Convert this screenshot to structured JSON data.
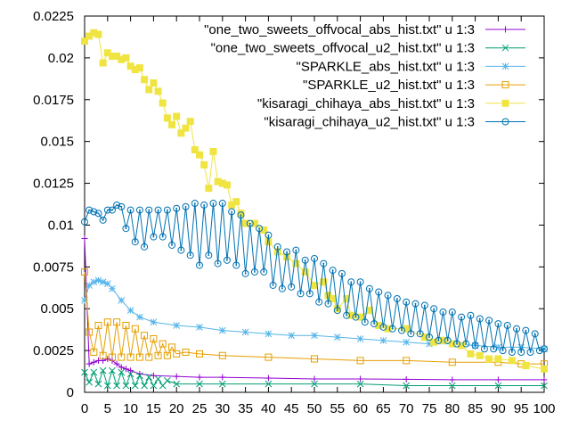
{
  "chart_data": {
    "type": "line",
    "xlim": [
      0,
      100
    ],
    "ylim": [
      0,
      0.0225
    ],
    "xticks": [
      "0",
      "5",
      "10",
      "15",
      "20",
      "25",
      "30",
      "35",
      "40",
      "45",
      "50",
      "55",
      "60",
      "65",
      "70",
      "75",
      "80",
      "85",
      "90",
      "95",
      "100"
    ],
    "yticks": [
      "0",
      "0.0025",
      "0.005",
      "0.0075",
      "0.01",
      "0.0125",
      "0.015",
      "0.0175",
      "0.02",
      "0.0225"
    ],
    "grid": false,
    "legend_position": "top-right",
    "series": [
      {
        "name": "\"one_two_sweets_offvocal_abs_hist.txt\" u 1:3",
        "color": "#9400d3",
        "marker": "plus",
        "x": [
          0,
          1,
          2,
          3,
          4,
          5,
          6,
          7,
          8,
          9,
          10,
          12,
          15,
          20,
          25,
          30,
          40,
          50,
          60,
          70,
          80,
          90,
          100
        ],
        "y": [
          0.0092,
          0.0017,
          0.0018,
          0.0019,
          0.0019,
          0.002,
          0.0019,
          0.0017,
          0.0015,
          0.0014,
          0.0013,
          0.0011,
          0.001,
          0.00095,
          0.0009,
          0.0009,
          0.00085,
          0.0008,
          0.0008,
          0.00078,
          0.00075,
          0.00075,
          0.00075
        ]
      },
      {
        "name": "\"one_two_sweets_offvocal_u2_hist.txt\" u 1:3",
        "color": "#009e73",
        "marker": "x",
        "x": [
          0,
          1,
          2,
          3,
          4,
          5,
          6,
          7,
          8,
          9,
          10,
          11,
          12,
          13,
          14,
          15,
          16,
          17,
          18,
          20,
          25,
          30,
          40,
          50,
          60,
          70,
          80,
          90,
          100
        ],
        "y": [
          0.0012,
          0.0006,
          0.0012,
          0.0005,
          0.0013,
          0.0004,
          0.0013,
          0.0004,
          0.0012,
          0.0004,
          0.0011,
          0.0004,
          0.001,
          0.0004,
          0.0009,
          0.0004,
          0.0008,
          0.0004,
          0.0007,
          0.0005,
          0.0005,
          0.0005,
          0.0005,
          0.0005,
          0.0005,
          0.0004,
          0.0004,
          0.0004,
          0.0004
        ]
      },
      {
        "name": "\"SPARKLE_abs_hist.txt\" u 1:3",
        "color": "#56b4e9",
        "marker": "star",
        "x": [
          0,
          1,
          2,
          3,
          4,
          5,
          6,
          8,
          10,
          12,
          15,
          20,
          25,
          30,
          35,
          40,
          45,
          50,
          55,
          60,
          65,
          70,
          75,
          80,
          85,
          90,
          95,
          100
        ],
        "y": [
          0.0055,
          0.0064,
          0.0066,
          0.0067,
          0.0066,
          0.0065,
          0.0062,
          0.0055,
          0.0049,
          0.0045,
          0.0042,
          0.004,
          0.0039,
          0.0037,
          0.0036,
          0.0035,
          0.0034,
          0.0034,
          0.0033,
          0.0032,
          0.0031,
          0.003,
          0.0029,
          0.0029,
          0.0028,
          0.0027,
          0.0027,
          0.0026
        ]
      },
      {
        "name": "\"SPARKLE_u2_hist.txt\" u 1:3",
        "color": "#e69f00",
        "marker": "square-open",
        "x": [
          0,
          1,
          2,
          3,
          4,
          5,
          6,
          7,
          8,
          9,
          10,
          11,
          12,
          13,
          14,
          15,
          16,
          17,
          18,
          19,
          20,
          22,
          25,
          30,
          40,
          50,
          60,
          70,
          80,
          90,
          95,
          100
        ],
        "y": [
          0.0072,
          0.0036,
          0.0024,
          0.004,
          0.0022,
          0.0042,
          0.0021,
          0.0042,
          0.0021,
          0.004,
          0.0021,
          0.0038,
          0.0021,
          0.0034,
          0.0021,
          0.0032,
          0.0022,
          0.0029,
          0.0022,
          0.0027,
          0.0023,
          0.0024,
          0.0023,
          0.0022,
          0.0021,
          0.002,
          0.0019,
          0.0019,
          0.0018,
          0.0018,
          0.0017,
          0.0017
        ]
      },
      {
        "name": "\"kisaragi_chihaya_abs_hist.txt\" u 1:3",
        "color": "#f0e442",
        "marker": "square-filled",
        "x": [
          0,
          1,
          2,
          3,
          4,
          5,
          6,
          7,
          8,
          9,
          10,
          11,
          12,
          13,
          14,
          15,
          16,
          17,
          18,
          19,
          20,
          21,
          22,
          23,
          24,
          25,
          26,
          27,
          28,
          29,
          30,
          31,
          32,
          33,
          34,
          35,
          37,
          39,
          40,
          42,
          44,
          46,
          48,
          50,
          52,
          53,
          54,
          55,
          57,
          58,
          60,
          62,
          64,
          66,
          70,
          74,
          76,
          78,
          80,
          82,
          84,
          86,
          88,
          90,
          93,
          96,
          100
        ],
        "y": [
          0.021,
          0.0213,
          0.0215,
          0.0214,
          0.0197,
          0.0203,
          0.0201,
          0.0201,
          0.0199,
          0.02,
          0.0195,
          0.0193,
          0.0194,
          0.0187,
          0.0181,
          0.0185,
          0.018,
          0.0173,
          0.0164,
          0.016,
          0.0165,
          0.0155,
          0.0158,
          0.0162,
          0.0145,
          0.0142,
          0.0136,
          0.0122,
          0.0144,
          0.0126,
          0.0125,
          0.0124,
          0.0112,
          0.0114,
          0.0107,
          0.0101,
          0.0101,
          0.0097,
          0.009,
          0.0084,
          0.0081,
          0.0077,
          0.0072,
          0.0064,
          0.0066,
          0.0058,
          0.0056,
          0.005,
          0.0056,
          0.0046,
          0.0045,
          0.0049,
          0.004,
          0.0038,
          0.0038,
          0.0033,
          0.003,
          0.0031,
          0.0029,
          0.0028,
          0.0023,
          0.0022,
          0.002,
          0.002,
          0.0019,
          0.0016,
          0.0014
        ]
      },
      {
        "name": "\"kisaragi_chihaya_u2_hist.txt\" u 1:3",
        "color": "#0072b2",
        "marker": "circle-dot",
        "x": [
          0,
          1,
          2,
          3,
          4,
          5,
          6,
          7,
          8,
          9,
          10,
          11,
          12,
          13,
          14,
          15,
          16,
          17,
          18,
          19,
          20,
          21,
          22,
          23,
          24,
          25,
          26,
          27,
          28,
          29,
          30,
          31,
          32,
          33,
          34,
          35,
          36,
          37,
          38,
          39,
          40,
          41,
          42,
          43,
          44,
          45,
          46,
          47,
          48,
          49,
          50,
          51,
          52,
          53,
          54,
          55,
          56,
          57,
          58,
          59,
          60,
          61,
          62,
          63,
          64,
          65,
          66,
          67,
          68,
          69,
          70,
          71,
          72,
          73,
          74,
          75,
          76,
          77,
          78,
          79,
          80,
          81,
          82,
          83,
          84,
          85,
          86,
          87,
          88,
          89,
          90,
          91,
          92,
          93,
          94,
          95,
          96,
          97,
          98,
          99,
          100
        ],
        "y": [
          0.0102,
          0.0109,
          0.0108,
          0.0107,
          0.0103,
          0.0109,
          0.0109,
          0.0112,
          0.0111,
          0.0098,
          0.0109,
          0.009,
          0.0109,
          0.0087,
          0.0109,
          0.0093,
          0.0109,
          0.0093,
          0.0109,
          0.0088,
          0.011,
          0.0085,
          0.0111,
          0.0082,
          0.0113,
          0.0076,
          0.0112,
          0.0082,
          0.0113,
          0.0077,
          0.0113,
          0.0079,
          0.0108,
          0.0076,
          0.0106,
          0.0071,
          0.0101,
          0.0072,
          0.0098,
          0.0072,
          0.0094,
          0.0064,
          0.0087,
          0.0062,
          0.0084,
          0.0063,
          0.0085,
          0.0059,
          0.0079,
          0.0059,
          0.008,
          0.0054,
          0.0077,
          0.0053,
          0.0073,
          0.0049,
          0.0071,
          0.0046,
          0.0066,
          0.0045,
          0.0066,
          0.0042,
          0.0062,
          0.0041,
          0.006,
          0.0039,
          0.0058,
          0.0038,
          0.0056,
          0.0037,
          0.0054,
          0.0035,
          0.0053,
          0.0035,
          0.0052,
          0.0033,
          0.005,
          0.0031,
          0.0048,
          0.0031,
          0.0048,
          0.0029,
          0.0045,
          0.0029,
          0.0046,
          0.0028,
          0.0044,
          0.0026,
          0.0043,
          0.0026,
          0.0041,
          0.0025,
          0.004,
          0.0024,
          0.0038,
          0.0024,
          0.0037,
          0.0024,
          0.0035,
          0.0025,
          0.0026
        ]
      }
    ]
  }
}
